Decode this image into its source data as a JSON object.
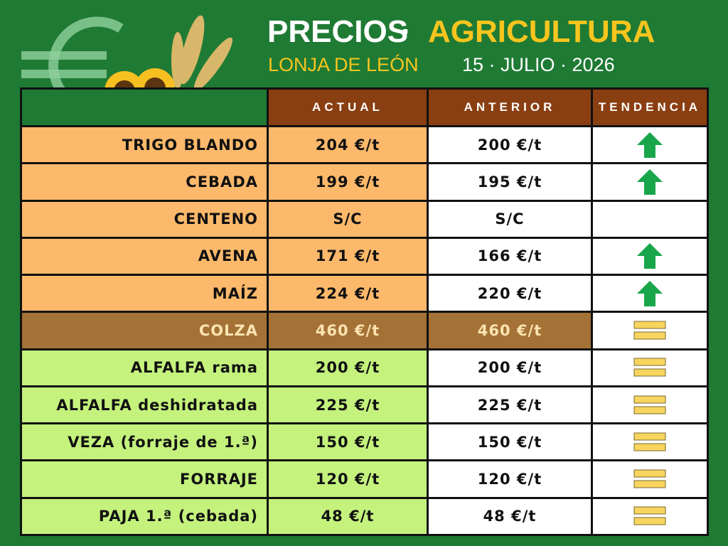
{
  "header": {
    "title": "PRECIOS",
    "separator": "·",
    "title_accent": "AGRICULTURA",
    "subtitle": "LONJA DE LEÓN",
    "date": "15 · JULIO · 2026"
  },
  "table": {
    "columns": [
      "ACTUAL",
      "ANTERIOR",
      "TENDENCIA"
    ],
    "rows": [
      [
        "TRIGO BLANDO",
        "204 €/t",
        "200 €/t"
      ],
      [
        "CEBADA",
        "199 €/t",
        "195 €/t"
      ],
      [
        "CENTENO",
        "S/C",
        "S/C"
      ],
      [
        "AVENA",
        "171 €/t",
        "166 €/t"
      ],
      [
        "MAÍZ",
        "224 €/t",
        "220 €/t"
      ],
      [
        "COLZA",
        "460 €/t",
        "460 €/t"
      ],
      [
        "ALFALFA rama",
        "200 €/t",
        "200 €/t"
      ],
      [
        "ALFALFA deshidratada",
        "225 €/t",
        "225 €/t"
      ],
      [
        "VEZA (forraje de 1.ª)",
        "150 €/t",
        "150 €/t"
      ],
      [
        "FORRAJE",
        "120 €/t",
        "120 €/t"
      ],
      [
        "PAJA 1.ª (cebada)",
        "48 €/t",
        "48 €/t"
      ]
    ]
  }
}
